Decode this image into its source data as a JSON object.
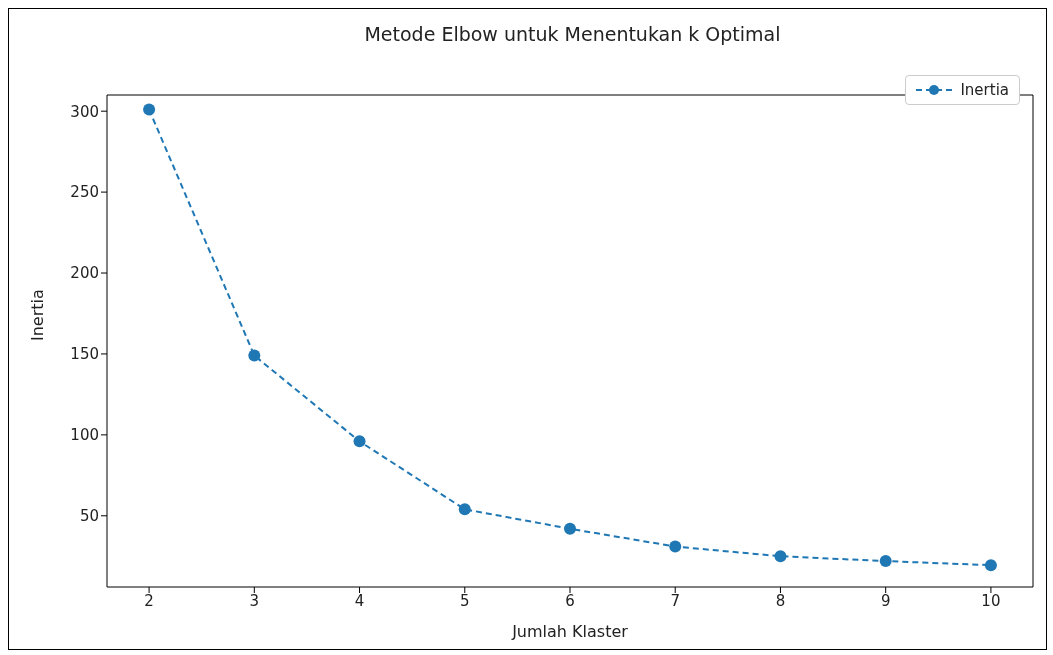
{
  "chart_data": {
    "type": "line",
    "title": "Metode Elbow untuk Menentukan k Optimal",
    "xlabel": "Jumlah Klaster",
    "ylabel": "Inertia",
    "x": [
      2,
      3,
      4,
      5,
      6,
      7,
      8,
      9,
      10
    ],
    "series": [
      {
        "name": "Inertia",
        "color": "#1f77b4",
        "values": [
          301,
          149,
          96,
          54,
          42,
          31,
          25,
          22,
          19.5
        ]
      }
    ],
    "xlim": [
      1.6,
      10.4
    ],
    "xticks": [
      2,
      3,
      4,
      5,
      6,
      7,
      8,
      9,
      10
    ],
    "ylim": [
      6,
      310
    ],
    "yticks": [
      50,
      100,
      150,
      200,
      250,
      300
    ],
    "marker": "circle",
    "line_style": "dashed",
    "legend": "top right",
    "grid": false
  }
}
